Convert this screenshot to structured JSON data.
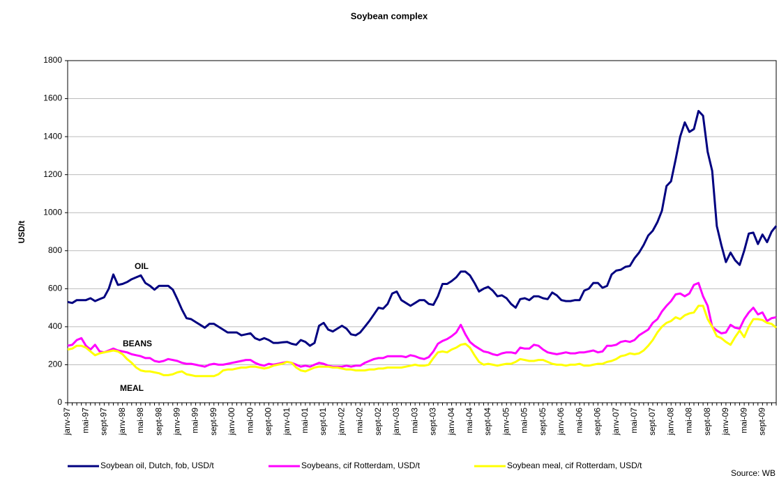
{
  "chart_data": {
    "type": "line",
    "title": "Soybean complex",
    "y_label": "USD/t",
    "source": "Source: WB",
    "annotations": [
      "OIL",
      "BEANS",
      "MEAL"
    ],
    "categories": [
      "janv-97",
      null,
      null,
      null,
      "mai-97",
      null,
      null,
      null,
      "sept-97",
      null,
      null,
      null,
      "janv-98",
      null,
      null,
      null,
      "mai-98",
      null,
      null,
      null,
      "sept-98",
      null,
      null,
      null,
      "janv-99",
      null,
      null,
      null,
      "mai-99",
      null,
      null,
      null,
      "sept-99",
      null,
      null,
      null,
      "janv-00",
      null,
      null,
      null,
      "mai-00",
      null,
      null,
      null,
      "sept-00",
      null,
      null,
      null,
      "janv-01",
      null,
      null,
      null,
      "mai-01",
      null,
      null,
      null,
      "sept-01",
      null,
      null,
      null,
      "janv-02",
      null,
      null,
      null,
      "mai-02",
      null,
      null,
      null,
      "sept-02",
      null,
      null,
      null,
      "janv-03",
      null,
      null,
      null,
      "mai-03",
      null,
      null,
      null,
      "sept-03",
      null,
      null,
      null,
      "janv-04",
      null,
      null,
      null,
      "mai-04",
      null,
      null,
      null,
      "sept-04",
      null,
      null,
      null,
      "janv-05",
      null,
      null,
      null,
      "mai-05",
      null,
      null,
      null,
      "sept-05",
      null,
      null,
      null,
      "janv-06",
      null,
      null,
      null,
      "mai-06",
      null,
      null,
      null,
      "sept-06",
      null,
      null,
      null,
      "janv-07",
      null,
      null,
      null,
      "mai-07",
      null,
      null,
      null,
      "sept-07",
      null,
      null,
      null,
      "janv-08",
      null,
      null,
      null,
      "mai-08",
      null,
      null,
      null,
      "sept-08",
      null,
      null,
      null,
      "janv-09",
      null,
      null,
      null,
      "mai-09",
      null,
      null,
      null,
      "sept-09",
      null,
      null,
      null
    ],
    "series": [
      {
        "name": "Soybean oil, Dutch, fob, USD/t",
        "color": "#000080",
        "values": [
          530,
          525,
          540,
          540,
          540,
          550,
          535,
          545,
          555,
          600,
          675,
          620,
          625,
          635,
          650,
          660,
          670,
          630,
          615,
          595,
          615,
          615,
          615,
          595,
          545,
          490,
          445,
          440,
          425,
          410,
          395,
          415,
          415,
          400,
          385,
          370,
          370,
          370,
          355,
          360,
          365,
          340,
          330,
          340,
          330,
          315,
          315,
          318,
          320,
          310,
          305,
          330,
          320,
          300,
          315,
          405,
          420,
          385,
          375,
          390,
          405,
          390,
          360,
          355,
          370,
          400,
          430,
          465,
          500,
          495,
          520,
          575,
          585,
          540,
          525,
          510,
          525,
          540,
          540,
          520,
          515,
          560,
          625,
          625,
          640,
          660,
          690,
          690,
          670,
          630,
          585,
          600,
          610,
          590,
          560,
          565,
          550,
          520,
          500,
          545,
          550,
          540,
          560,
          560,
          550,
          545,
          580,
          565,
          540,
          535,
          535,
          540,
          540,
          590,
          600,
          630,
          630,
          605,
          615,
          675,
          695,
          700,
          715,
          720,
          760,
          790,
          830,
          880,
          905,
          950,
          1010,
          1140,
          1165,
          1280,
          1400,
          1475,
          1425,
          1440,
          1535,
          1510,
          1320,
          1220,
          930,
          830,
          740,
          790,
          750,
          725,
          800,
          890,
          895,
          835,
          885,
          845,
          900,
          930
        ]
      },
      {
        "name": "Soybeans, cif Rotterdam, USD/t",
        "color": "#ff00ff",
        "values": [
          300,
          305,
          330,
          340,
          300,
          280,
          305,
          270,
          265,
          275,
          285,
          275,
          270,
          265,
          255,
          250,
          245,
          235,
          235,
          220,
          215,
          220,
          230,
          225,
          220,
          210,
          205,
          205,
          200,
          195,
          190,
          200,
          205,
          200,
          200,
          205,
          210,
          215,
          220,
          225,
          225,
          210,
          200,
          195,
          205,
          200,
          205,
          210,
          215,
          210,
          200,
          190,
          195,
          190,
          200,
          210,
          205,
          195,
          190,
          190,
          190,
          195,
          190,
          195,
          195,
          210,
          220,
          230,
          235,
          235,
          245,
          245,
          245,
          245,
          240,
          250,
          245,
          235,
          230,
          240,
          270,
          310,
          325,
          335,
          350,
          370,
          410,
          360,
          320,
          300,
          285,
          270,
          265,
          255,
          250,
          260,
          265,
          265,
          260,
          290,
          285,
          285,
          305,
          300,
          280,
          265,
          260,
          255,
          260,
          265,
          260,
          260,
          265,
          265,
          270,
          275,
          265,
          270,
          300,
          300,
          305,
          320,
          325,
          320,
          330,
          355,
          370,
          385,
          420,
          440,
          480,
          510,
          535,
          570,
          575,
          560,
          575,
          620,
          630,
          560,
          510,
          400,
          380,
          365,
          370,
          410,
          395,
          390,
          440,
          475,
          500,
          465,
          475,
          430,
          445,
          450
        ]
      },
      {
        "name": "Soybean meal, cif Rotterdam, USD/t",
        "color": "#ffff00",
        "values": [
          280,
          285,
          300,
          300,
          290,
          270,
          250,
          260,
          265,
          270,
          275,
          270,
          255,
          230,
          210,
          185,
          170,
          165,
          165,
          160,
          155,
          145,
          145,
          150,
          160,
          165,
          150,
          145,
          140,
          140,
          140,
          140,
          140,
          150,
          170,
          175,
          175,
          180,
          185,
          185,
          190,
          190,
          185,
          180,
          185,
          195,
          200,
          205,
          215,
          210,
          185,
          170,
          165,
          175,
          185,
          190,
          190,
          190,
          185,
          185,
          180,
          175,
          175,
          170,
          170,
          170,
          175,
          175,
          180,
          180,
          185,
          185,
          185,
          185,
          190,
          195,
          200,
          195,
          195,
          200,
          235,
          265,
          270,
          265,
          280,
          290,
          305,
          310,
          290,
          250,
          215,
          200,
          205,
          200,
          195,
          200,
          205,
          205,
          215,
          230,
          225,
          220,
          220,
          225,
          225,
          215,
          205,
          200,
          200,
          195,
          200,
          200,
          205,
          195,
          195,
          200,
          205,
          205,
          215,
          220,
          230,
          245,
          250,
          260,
          255,
          260,
          275,
          300,
          330,
          370,
          400,
          420,
          430,
          450,
          440,
          460,
          470,
          475,
          510,
          510,
          440,
          400,
          350,
          340,
          320,
          305,
          345,
          380,
          345,
          400,
          440,
          440,
          435,
          420,
          415,
          395
        ]
      }
    ],
    "ylim": [
      0,
      1800
    ],
    "yticks": [
      0,
      200,
      400,
      600,
      800,
      1000,
      1200,
      1400,
      1600,
      1800
    ],
    "grid": true
  }
}
